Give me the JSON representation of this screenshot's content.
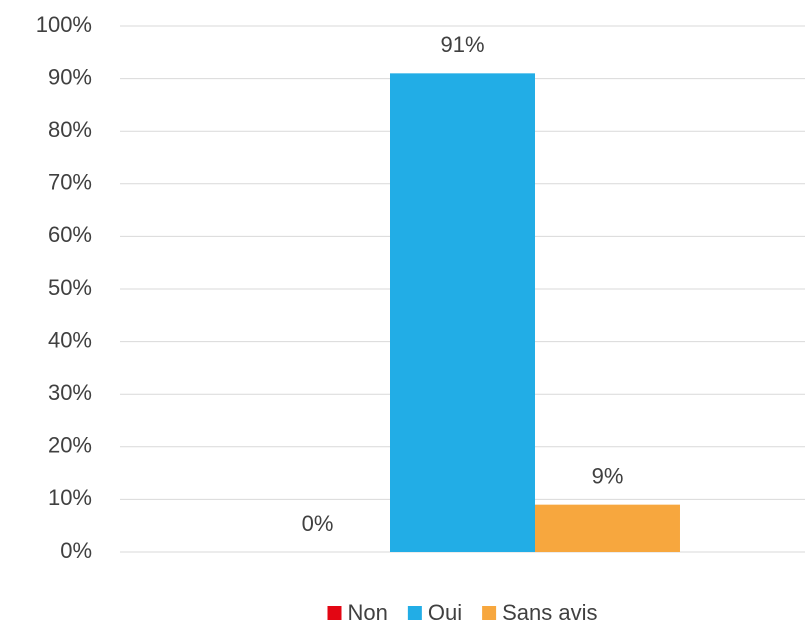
{
  "chart_data": {
    "type": "bar",
    "categories": [
      null
    ],
    "series": [
      {
        "name": "Non",
        "color": "#e30613",
        "values": [
          0
        ],
        "value_labels": [
          "0%"
        ]
      },
      {
        "name": "Oui",
        "color": "#22ade6",
        "values": [
          91
        ],
        "value_labels": [
          "91%"
        ]
      },
      {
        "name": "Sans avis",
        "color": "#f7a73e",
        "values": [
          9
        ],
        "value_labels": [
          "9%"
        ]
      }
    ],
    "ylim": [
      0,
      100
    ],
    "yticks": [
      {
        "value": 0,
        "label": "0%"
      },
      {
        "value": 10,
        "label": "10%"
      },
      {
        "value": 20,
        "label": "20%"
      },
      {
        "value": 30,
        "label": "30%"
      },
      {
        "value": 40,
        "label": "40%"
      },
      {
        "value": 50,
        "label": "50%"
      },
      {
        "value": 60,
        "label": "60%"
      },
      {
        "value": 70,
        "label": "70%"
      },
      {
        "value": 80,
        "label": "80%"
      },
      {
        "value": 90,
        "label": "90%"
      },
      {
        "value": 100,
        "label": "100%"
      }
    ],
    "grid": true,
    "legend": "bottom"
  }
}
